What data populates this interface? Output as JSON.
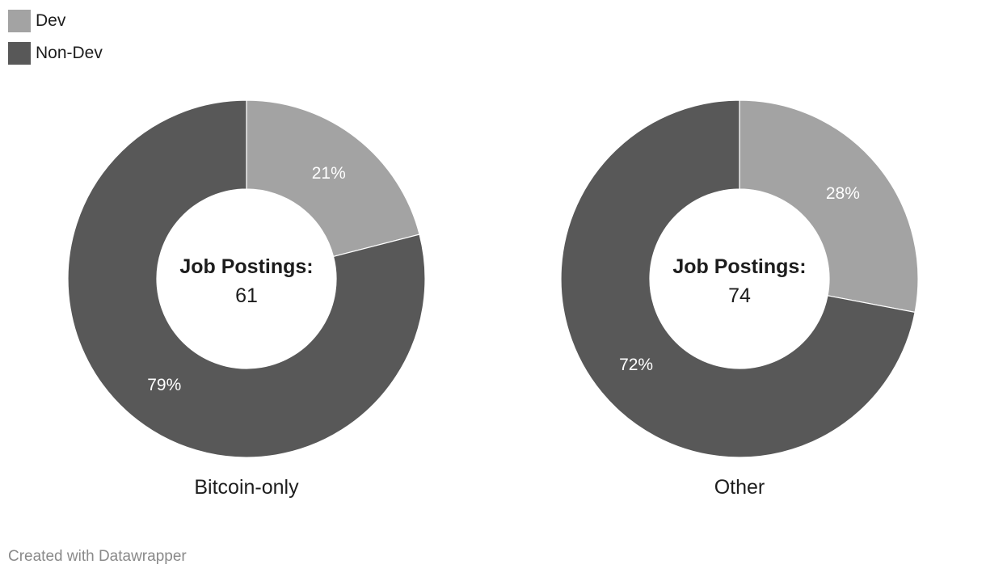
{
  "legend": [
    {
      "label": "Dev",
      "color": "#a3a3a3"
    },
    {
      "label": "Non-Dev",
      "color": "#585858"
    }
  ],
  "center_label": "Job Postings:",
  "chart_data": [
    {
      "type": "pie",
      "title": "Bitcoin-only",
      "total": "61",
      "slices": [
        {
          "name": "Dev",
          "value": 21,
          "label": "21%"
        },
        {
          "name": "Non-Dev",
          "value": 79,
          "label": "79%"
        }
      ]
    },
    {
      "type": "pie",
      "title": "Other",
      "total": "74",
      "slices": [
        {
          "name": "Dev",
          "value": 28,
          "label": "28%"
        },
        {
          "name": "Non-Dev",
          "value": 72,
          "label": "72%"
        }
      ]
    }
  ],
  "footer": "Created with Datawrapper"
}
